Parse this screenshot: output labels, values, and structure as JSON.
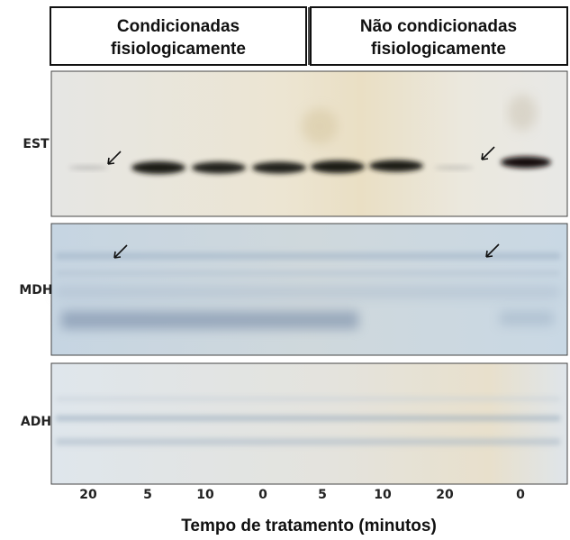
{
  "header": {
    "groups": [
      {
        "lines": [
          "Condicionadas",
          "fisiologicamente"
        ]
      },
      {
        "lines": [
          "Não condicionadas",
          "fisiologicamente"
        ]
      }
    ]
  },
  "panels": [
    {
      "label": "EST"
    },
    {
      "label": "MDH"
    },
    {
      "label": "ADH"
    }
  ],
  "lanes": [
    "20",
    "5",
    "10",
    "0",
    "5",
    "10",
    "20",
    "0"
  ],
  "x_label": "Tempo de tratamento (minutos)"
}
